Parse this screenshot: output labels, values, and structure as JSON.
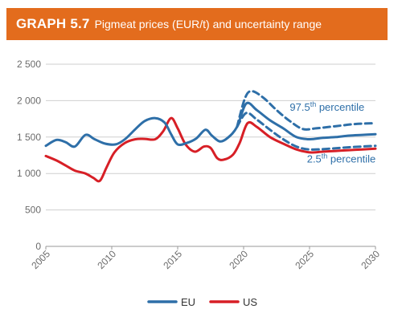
{
  "header": {
    "label": "GRAPH 5.7",
    "title": "Pigmeat prices (EUR/t) and uncertainty range",
    "bg_color": "#e36c1d"
  },
  "chart_data": {
    "type": "line",
    "title": "Pigmeat prices (EUR/t) and uncertainty range",
    "xlim": [
      2005,
      2030
    ],
    "ylim": [
      0,
      2500
    ],
    "x_ticks": [
      2005,
      2010,
      2015,
      2020,
      2025,
      2030
    ],
    "y_ticks": [
      0,
      500,
      1000,
      1500,
      2000,
      2500
    ],
    "x_tick_labels": [
      "2005",
      "2010",
      "2015",
      "2020",
      "2025",
      "2030"
    ],
    "y_tick_labels": [
      "0",
      "500",
      "1 000",
      "1 500",
      "2 000",
      "2 500"
    ],
    "grid": "horizontal",
    "legend_position": "bottom",
    "series": [
      {
        "name": "EU",
        "color": "#2e6fa8",
        "style": "solid",
        "points": [
          [
            2005,
            1380
          ],
          [
            2005.8,
            1460
          ],
          [
            2006.5,
            1430
          ],
          [
            2007.2,
            1370
          ],
          [
            2008,
            1530
          ],
          [
            2008.7,
            1470
          ],
          [
            2009.5,
            1410
          ],
          [
            2010.3,
            1400
          ],
          [
            2011,
            1470
          ],
          [
            2011.8,
            1610
          ],
          [
            2012.5,
            1720
          ],
          [
            2013.3,
            1760
          ],
          [
            2014,
            1700
          ],
          [
            2014.5,
            1540
          ],
          [
            2015,
            1400
          ],
          [
            2015.7,
            1420
          ],
          [
            2016.4,
            1480
          ],
          [
            2017.1,
            1600
          ],
          [
            2017.6,
            1520
          ],
          [
            2018.2,
            1440
          ],
          [
            2018.8,
            1490
          ],
          [
            2019.5,
            1640
          ],
          [
            2020.2,
            1960
          ],
          [
            2021,
            1870
          ],
          [
            2022,
            1730
          ],
          [
            2023,
            1620
          ],
          [
            2024,
            1500
          ],
          [
            2025,
            1470
          ],
          [
            2026,
            1490
          ],
          [
            2027,
            1500
          ],
          [
            2028,
            1520
          ],
          [
            2029,
            1530
          ],
          [
            2030,
            1540
          ]
        ]
      },
      {
        "name": "US",
        "color": "#d71f26",
        "style": "solid",
        "points": [
          [
            2005,
            1240
          ],
          [
            2005.8,
            1180
          ],
          [
            2006.5,
            1110
          ],
          [
            2007.2,
            1040
          ],
          [
            2008,
            1000
          ],
          [
            2008.6,
            940
          ],
          [
            2009.1,
            900
          ],
          [
            2009.6,
            1080
          ],
          [
            2010.2,
            1290
          ],
          [
            2011,
            1420
          ],
          [
            2011.8,
            1470
          ],
          [
            2012.5,
            1475
          ],
          [
            2013.3,
            1470
          ],
          [
            2013.9,
            1580
          ],
          [
            2014.5,
            1760
          ],
          [
            2015,
            1620
          ],
          [
            2015.6,
            1400
          ],
          [
            2016.3,
            1300
          ],
          [
            2017.0,
            1370
          ],
          [
            2017.5,
            1350
          ],
          [
            2018,
            1210
          ],
          [
            2018.5,
            1190
          ],
          [
            2019.2,
            1260
          ],
          [
            2019.7,
            1420
          ],
          [
            2020.3,
            1690
          ],
          [
            2021,
            1640
          ],
          [
            2022,
            1500
          ],
          [
            2023,
            1410
          ],
          [
            2024,
            1330
          ],
          [
            2025,
            1290
          ],
          [
            2026,
            1300
          ],
          [
            2027,
            1310
          ],
          [
            2028,
            1320
          ],
          [
            2029,
            1330
          ],
          [
            2030,
            1340
          ]
        ]
      },
      {
        "name": "97.5th percentile",
        "color": "#2e6fa8",
        "style": "dashed",
        "points": [
          [
            2019.5,
            1640
          ],
          [
            2020.1,
            2030
          ],
          [
            2020.6,
            2130
          ],
          [
            2021.5,
            2040
          ],
          [
            2022.5,
            1870
          ],
          [
            2023.5,
            1720
          ],
          [
            2024.5,
            1610
          ],
          [
            2025.5,
            1620
          ],
          [
            2027,
            1650
          ],
          [
            2028.5,
            1680
          ],
          [
            2030,
            1690
          ]
        ]
      },
      {
        "name": "2.5th percentile",
        "color": "#2e6fa8",
        "style": "dashed",
        "points": [
          [
            2019.5,
            1640
          ],
          [
            2020.2,
            1830
          ],
          [
            2021,
            1740
          ],
          [
            2022,
            1600
          ],
          [
            2023,
            1470
          ],
          [
            2024,
            1370
          ],
          [
            2025,
            1330
          ],
          [
            2026.5,
            1340
          ],
          [
            2028,
            1360
          ],
          [
            2030,
            1380
          ]
        ]
      }
    ],
    "annotations": [
      {
        "base": "97.5",
        "sup": "th",
        "rest": " percentile",
        "x": 2023.5,
        "y": 1860
      },
      {
        "base": "2.5",
        "sup": "th",
        "rest": " percentile",
        "x": 2024.8,
        "y": 1150
      }
    ],
    "legend": [
      {
        "label": "EU",
        "color": "#2e6fa8"
      },
      {
        "label": "US",
        "color": "#d71f26"
      }
    ]
  }
}
